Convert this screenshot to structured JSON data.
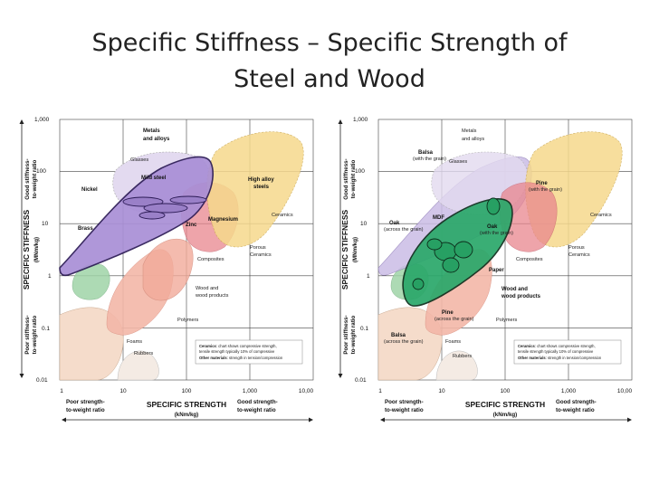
{
  "title": {
    "line1": "Specific Stiffness – Specific Strength of",
    "line2": "Steel and Wood"
  },
  "colors": {
    "metals": "#a98fd6",
    "glasses": "#d8cce8",
    "ceramics": "#f6d98c",
    "composites": "#e9868e",
    "wood": "#f2ab9a",
    "polymers": "#f3c9b9",
    "foams": "#f5dccb",
    "wood_highlight": "#2aa86a",
    "porous": "#9fd4a8"
  },
  "axes": {
    "x_ticks": [
      "1",
      "10",
      "100",
      "1,000",
      "10,00"
    ],
    "y_ticks": [
      "1,000",
      "100",
      "10",
      "1",
      "0.1",
      "0.01"
    ],
    "x_title": "SPECIFIC STRENGTH",
    "x_unit": "(kNm/kg)",
    "x_poor": [
      "Poor strength-",
      "to-weight ratio"
    ],
    "x_good": [
      "Good strength-",
      "to-weight ratio"
    ],
    "y_title": "SPECIFIC STIFFNESS",
    "y_unit": "(MNm/kg)",
    "y_good": [
      "Good stiffness-",
      "to-weight ratio"
    ],
    "y_poor": [
      "Poor stiffness-",
      "to-weight ratio"
    ]
  },
  "note": {
    "ceramics_bold": "Ceramics",
    "ceramics_text": ": chart shows compressive strength,",
    "ceramics_text2": "tensile strength typically 10% of compressive",
    "other_bold": "Other materials",
    "other_text": ": strength in tension/compression"
  },
  "left_labels": {
    "metals": [
      "Metals",
      "and alloys"
    ],
    "glasses": "Glasses",
    "mild_steel": "Mild steel",
    "high_alloy": [
      "High alloy",
      "steels"
    ],
    "nickel": "Nickel",
    "brass": "Brass",
    "zinc": "Zinc",
    "magnesium": "Magnesium",
    "ceramics": "Ceramics",
    "porous": [
      "Porous",
      "Ceramics"
    ],
    "composites": "Composites",
    "wood": [
      "Wood and",
      "wood products"
    ],
    "polymers": "Polymers",
    "foams": "Foams",
    "rubbers": "Rubbers"
  },
  "right_labels": {
    "metals": [
      "Metals",
      "and alloys"
    ],
    "balsa_grain": [
      "Balsa",
      "(with the grain)"
    ],
    "glasses": "Glasses",
    "pine_grain": [
      "Pine",
      "(with the grain)"
    ],
    "ceramics": "Ceramics",
    "oak_across": [
      "Oak",
      "(across the grain)"
    ],
    "mdf": "MDF",
    "oak_grain": [
      "Oak",
      "(with the grain)"
    ],
    "porous": [
      "Porous",
      "Ceramics"
    ],
    "composites": "Composites",
    "paper": "Paper",
    "wood": [
      "Wood and",
      "wood products"
    ],
    "pine_across": [
      "Pine",
      "(across the grain)"
    ],
    "polymers": "Polymers",
    "balsa_across": [
      "Balsa",
      "(across the grain)"
    ],
    "foams": "Foams",
    "rubbers": "Rubbers"
  }
}
